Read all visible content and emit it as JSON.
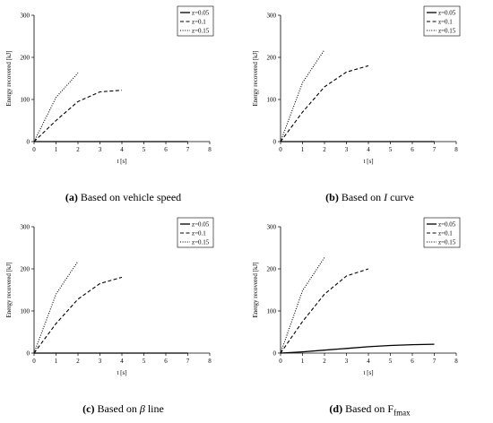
{
  "chart_data": [
    {
      "type": "line",
      "caption": {
        "tag": "(a)",
        "text": "Based on vehicle speed",
        "symbol": "",
        "sub": ""
      },
      "xlabel": "t [s]",
      "ylabel": "Energy recovered [kJ]",
      "xlim": [
        0,
        8
      ],
      "ylim": [
        0,
        300
      ],
      "xticks": [
        0,
        1,
        2,
        3,
        4,
        5,
        6,
        7,
        8
      ],
      "yticks": [
        0,
        100,
        200,
        300
      ],
      "legend": "top-right",
      "series": [
        {
          "name": "z=0.05",
          "style": "solid",
          "x": [
            0,
            7
          ],
          "y": [
            0,
            0
          ]
        },
        {
          "name": "z=0.1",
          "style": "dashed",
          "x": [
            0,
            1,
            2,
            3,
            4
          ],
          "y": [
            0,
            50,
            95,
            118,
            122
          ]
        },
        {
          "name": "z=0.15",
          "style": "dotted",
          "x": [
            0,
            1,
            2
          ],
          "y": [
            0,
            105,
            163
          ]
        }
      ]
    },
    {
      "type": "line",
      "caption": {
        "tag": "(b)",
        "text": "Based on ",
        "symbol": "I",
        "suffix": " curve",
        "sub": ""
      },
      "xlabel": "t [s]",
      "ylabel": "Energy recovered [kJ]",
      "xlim": [
        0,
        8
      ],
      "ylim": [
        0,
        300
      ],
      "xticks": [
        0,
        1,
        2,
        3,
        4,
        5,
        6,
        7,
        8
      ],
      "yticks": [
        0,
        100,
        200,
        300
      ],
      "legend": "top-right",
      "series": [
        {
          "name": "z=0.05",
          "style": "solid",
          "x": [
            0,
            7
          ],
          "y": [
            0,
            0
          ]
        },
        {
          "name": "z=0.1",
          "style": "dashed",
          "x": [
            0,
            1,
            2,
            3,
            4
          ],
          "y": [
            0,
            70,
            130,
            165,
            180
          ]
        },
        {
          "name": "z=0.15",
          "style": "dotted",
          "x": [
            0,
            1,
            2
          ],
          "y": [
            0,
            140,
            218
          ]
        }
      ]
    },
    {
      "type": "line",
      "caption": {
        "tag": "(c)",
        "text": "Based on ",
        "symbol": "β",
        "suffix": " line",
        "sub": ""
      },
      "xlabel": "t [s]",
      "ylabel": "Energy recovered [kJ]",
      "xlim": [
        0,
        8
      ],
      "ylim": [
        0,
        300
      ],
      "xticks": [
        0,
        1,
        2,
        3,
        4,
        5,
        6,
        7,
        8
      ],
      "yticks": [
        0,
        100,
        200,
        300
      ],
      "legend": "top-right",
      "series": [
        {
          "name": "z=0.05",
          "style": "solid",
          "x": [
            0,
            7
          ],
          "y": [
            0,
            0
          ]
        },
        {
          "name": "z=0.1",
          "style": "dashed",
          "x": [
            0,
            1,
            2,
            3,
            4
          ],
          "y": [
            0,
            70,
            128,
            165,
            180
          ]
        },
        {
          "name": "z=0.15",
          "style": "dotted",
          "x": [
            0,
            1,
            2
          ],
          "y": [
            0,
            140,
            218
          ]
        }
      ]
    },
    {
      "type": "line",
      "caption": {
        "tag": "(d)",
        "text": "Based on  ",
        "symbol": "F",
        "suffix": "",
        "sub": "fmax"
      },
      "xlabel": "t [s]",
      "ylabel": "Energy recovered [kJ]",
      "xlim": [
        0,
        8
      ],
      "ylim": [
        0,
        300
      ],
      "xticks": [
        0,
        1,
        2,
        3,
        4,
        5,
        6,
        7,
        8
      ],
      "yticks": [
        0,
        100,
        200,
        300
      ],
      "legend": "top-right",
      "series": [
        {
          "name": "z=0.05",
          "style": "solid",
          "x": [
            0,
            1,
            2,
            3,
            4,
            5,
            6,
            7
          ],
          "y": [
            0,
            3,
            7,
            11,
            15,
            18,
            20,
            21
          ]
        },
        {
          "name": "z=0.1",
          "style": "dashed",
          "x": [
            0,
            1,
            2,
            3,
            4
          ],
          "y": [
            0,
            75,
            140,
            183,
            200
          ]
        },
        {
          "name": "z=0.15",
          "style": "dotted",
          "x": [
            0,
            1,
            2
          ],
          "y": [
            0,
            148,
            227
          ]
        }
      ]
    }
  ]
}
